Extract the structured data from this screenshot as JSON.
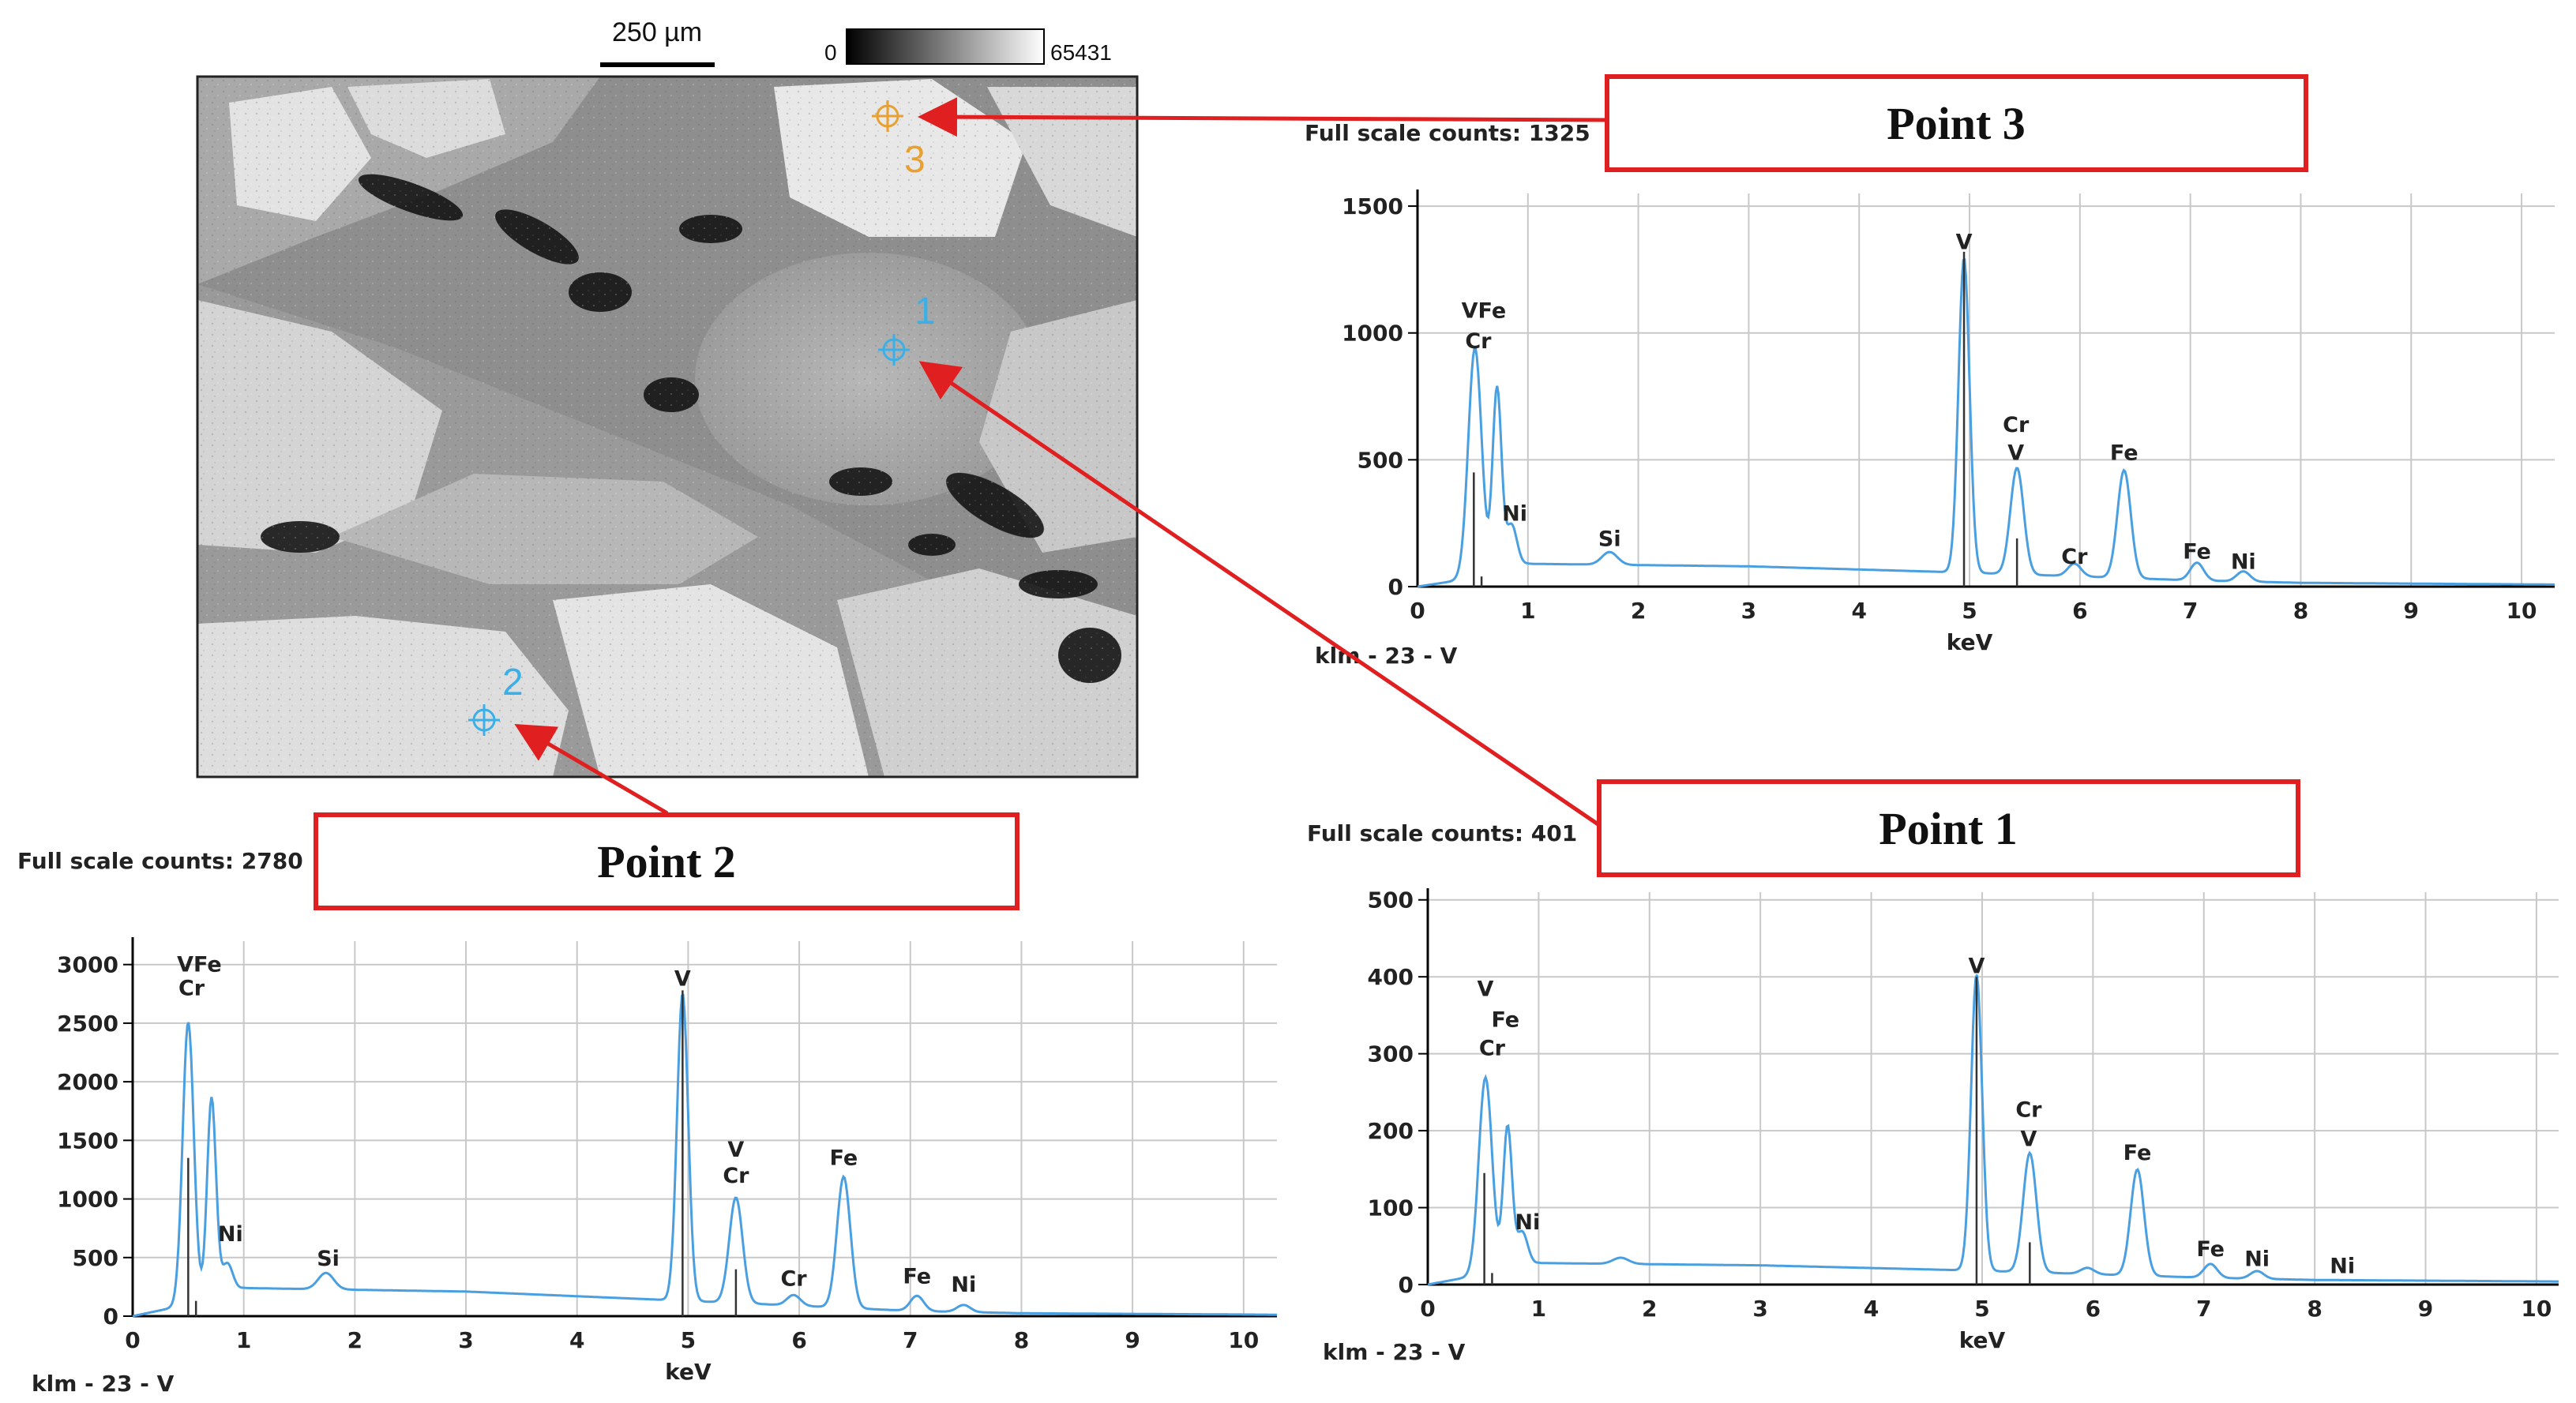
{
  "image": {
    "scale_bar_label": "250 µm",
    "colorbar_min": "0",
    "colorbar_max": "65431",
    "markers": [
      {
        "number": "1",
        "color": "#3bb0e8"
      },
      {
        "number": "2",
        "color": "#3bb0e8"
      },
      {
        "number": "3",
        "color": "#e8a030"
      }
    ]
  },
  "callouts": {
    "point3": "Point 3",
    "point1": "Point 1",
    "point2": "Point 2",
    "color": "#e02020"
  },
  "chart_data": [
    {
      "type": "line",
      "id": "point3",
      "full_scale": "Full scale counts: 1325",
      "xlabel": "keV",
      "footer_label": "klm - 23 - V",
      "xlim": [
        0,
        10.3
      ],
      "ylim": [
        0,
        1550
      ],
      "xticks": [
        0,
        1,
        2,
        3,
        4,
        5,
        6,
        7,
        8,
        9,
        10
      ],
      "yticks": [
        0,
        500,
        1000,
        1500
      ],
      "line_color": "#4a9fe0",
      "peaks": [
        {
          "x": 0.52,
          "y": 900,
          "w": 0.06
        },
        {
          "x": 0.72,
          "y": 720,
          "w": 0.04
        },
        {
          "x": 0.85,
          "y": 170,
          "w": 0.05
        },
        {
          "x": 1.74,
          "y": 50,
          "w": 0.07
        },
        {
          "x": 4.95,
          "y": 1240,
          "w": 0.05
        },
        {
          "x": 5.43,
          "y": 420,
          "w": 0.06
        },
        {
          "x": 5.95,
          "y": 50,
          "w": 0.06
        },
        {
          "x": 6.4,
          "y": 425,
          "w": 0.06
        },
        {
          "x": 7.06,
          "y": 70,
          "w": 0.06
        },
        {
          "x": 7.48,
          "y": 40,
          "w": 0.06
        }
      ],
      "background": [
        [
          0,
          0
        ],
        [
          0.3,
          20
        ],
        [
          1,
          90
        ],
        [
          3,
          80
        ],
        [
          5,
          55
        ],
        [
          7,
          25
        ],
        [
          8,
          15
        ],
        [
          10.3,
          8
        ]
      ],
      "markers": [
        {
          "x": 0.51,
          "y": 450
        },
        {
          "x": 0.58,
          "y": 40
        },
        {
          "x": 4.95,
          "y": 1320
        },
        {
          "x": 5.43,
          "y": 190
        }
      ],
      "labels": [
        {
          "text": "VFe",
          "x": 0.6,
          "y": 1060
        },
        {
          "text": "Cr",
          "x": 0.55,
          "y": 940
        },
        {
          "text": "Ni",
          "x": 0.88,
          "y": 260
        },
        {
          "text": "Si",
          "x": 1.74,
          "y": 160
        },
        {
          "text": "V",
          "x": 4.95,
          "y": 1330
        },
        {
          "text": "Cr",
          "x": 5.42,
          "y": 610
        },
        {
          "text": "V",
          "x": 5.42,
          "y": 500
        },
        {
          "text": "Fe",
          "x": 6.4,
          "y": 500
        },
        {
          "text": "Cr",
          "x": 5.95,
          "y": 90
        },
        {
          "text": "Fe",
          "x": 7.06,
          "y": 110
        },
        {
          "text": "Ni",
          "x": 7.48,
          "y": 70
        }
      ]
    },
    {
      "type": "line",
      "id": "point1",
      "full_scale": "Full scale counts: 401",
      "xlabel": "keV",
      "footer_label": "klm - 23 - V",
      "xlim": [
        0,
        10.2
      ],
      "ylim": [
        0,
        510
      ],
      "xticks": [
        0,
        1,
        2,
        3,
        4,
        5,
        6,
        7,
        8,
        9,
        10
      ],
      "yticks": [
        0,
        100,
        200,
        300,
        400,
        500
      ],
      "line_color": "#4a9fe0",
      "peaks": [
        {
          "x": 0.52,
          "y": 255,
          "w": 0.06
        },
        {
          "x": 0.72,
          "y": 185,
          "w": 0.04
        },
        {
          "x": 0.85,
          "y": 45,
          "w": 0.05
        },
        {
          "x": 1.74,
          "y": 8,
          "w": 0.07
        },
        {
          "x": 4.95,
          "y": 385,
          "w": 0.05
        },
        {
          "x": 5.43,
          "y": 155,
          "w": 0.06
        },
        {
          "x": 5.95,
          "y": 8,
          "w": 0.06
        },
        {
          "x": 6.4,
          "y": 138,
          "w": 0.06
        },
        {
          "x": 7.06,
          "y": 18,
          "w": 0.06
        },
        {
          "x": 7.48,
          "y": 10,
          "w": 0.06
        }
      ],
      "background": [
        [
          0,
          0
        ],
        [
          0.3,
          8
        ],
        [
          1,
          28
        ],
        [
          3,
          25
        ],
        [
          5,
          18
        ],
        [
          7,
          9
        ],
        [
          8,
          6
        ],
        [
          10.2,
          4
        ]
      ],
      "markers": [
        {
          "x": 0.51,
          "y": 145
        },
        {
          "x": 0.58,
          "y": 15
        },
        {
          "x": 4.95,
          "y": 400
        },
        {
          "x": 5.43,
          "y": 55
        }
      ],
      "labels": [
        {
          "text": "V",
          "x": 0.52,
          "y": 375
        },
        {
          "text": "Fe",
          "x": 0.7,
          "y": 335
        },
        {
          "text": "Cr",
          "x": 0.58,
          "y": 298
        },
        {
          "text": "Ni",
          "x": 0.9,
          "y": 72
        },
        {
          "text": "V",
          "x": 4.95,
          "y": 405
        },
        {
          "text": "Cr",
          "x": 5.42,
          "y": 218
        },
        {
          "text": "V",
          "x": 5.42,
          "y": 180
        },
        {
          "text": "Fe",
          "x": 6.4,
          "y": 162
        },
        {
          "text": "Fe",
          "x": 7.06,
          "y": 37
        },
        {
          "text": "Ni",
          "x": 7.48,
          "y": 24
        },
        {
          "text": "Ni",
          "x": 8.25,
          "y": 15
        }
      ]
    },
    {
      "type": "line",
      "id": "point2",
      "full_scale": "Full scale counts: 2780",
      "xlabel": "keV",
      "footer_label": "klm - 23 - V",
      "xlim": [
        0,
        10.3
      ],
      "ylim": [
        0,
        3200
      ],
      "xticks": [
        0,
        1,
        2,
        3,
        4,
        5,
        6,
        7,
        8,
        9,
        10
      ],
      "yticks": [
        0,
        500,
        1000,
        1500,
        2000,
        2500,
        3000
      ],
      "line_color": "#4a9fe0",
      "peaks": [
        {
          "x": 0.5,
          "y": 2400,
          "w": 0.05
        },
        {
          "x": 0.71,
          "y": 1700,
          "w": 0.04
        },
        {
          "x": 0.85,
          "y": 250,
          "w": 0.05
        },
        {
          "x": 1.74,
          "y": 140,
          "w": 0.07
        },
        {
          "x": 4.95,
          "y": 2620,
          "w": 0.05
        },
        {
          "x": 5.43,
          "y": 900,
          "w": 0.06
        },
        {
          "x": 5.95,
          "y": 90,
          "w": 0.06
        },
        {
          "x": 6.4,
          "y": 1120,
          "w": 0.06
        },
        {
          "x": 7.06,
          "y": 130,
          "w": 0.06
        },
        {
          "x": 7.48,
          "y": 60,
          "w": 0.06
        }
      ],
      "background": [
        [
          0,
          0
        ],
        [
          0.3,
          60
        ],
        [
          1,
          240
        ],
        [
          3,
          210
        ],
        [
          4.5,
          150
        ],
        [
          5.5,
          110
        ],
        [
          7,
          45
        ],
        [
          8,
          25
        ],
        [
          10.3,
          12
        ]
      ],
      "markers": [
        {
          "x": 0.5,
          "y": 1350
        },
        {
          "x": 0.57,
          "y": 130
        },
        {
          "x": 4.95,
          "y": 2780
        },
        {
          "x": 5.43,
          "y": 400
        }
      ],
      "labels": [
        {
          "text": "VFe",
          "x": 0.6,
          "y": 2940
        },
        {
          "text": "Cr",
          "x": 0.53,
          "y": 2740
        },
        {
          "text": "Ni",
          "x": 0.88,
          "y": 640
        },
        {
          "text": "Si",
          "x": 1.76,
          "y": 430
        },
        {
          "text": "V",
          "x": 4.95,
          "y": 2820
        },
        {
          "text": "V",
          "x": 5.43,
          "y": 1360
        },
        {
          "text": "Cr",
          "x": 5.43,
          "y": 1140
        },
        {
          "text": "Fe",
          "x": 6.4,
          "y": 1290
        },
        {
          "text": "Cr",
          "x": 5.95,
          "y": 260
        },
        {
          "text": "Fe",
          "x": 7.06,
          "y": 280
        },
        {
          "text": "Ni",
          "x": 7.48,
          "y": 210
        }
      ]
    }
  ]
}
